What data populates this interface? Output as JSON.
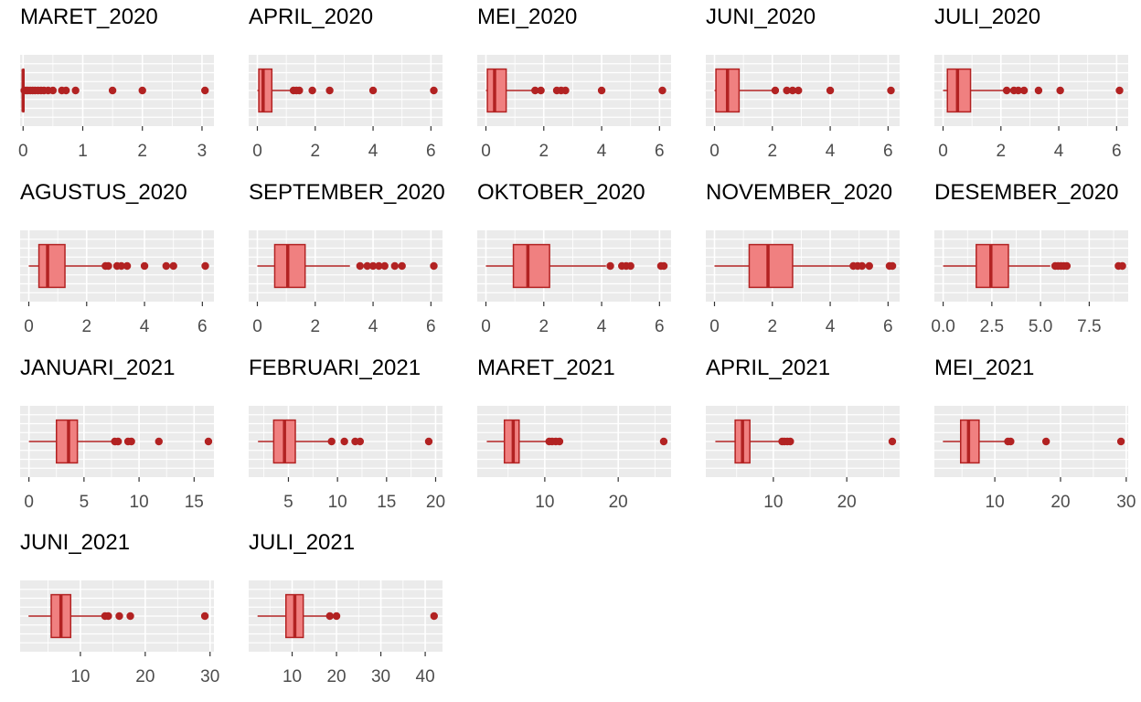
{
  "style": {
    "panel_bg": "#EBEBEB",
    "grid_color": "#FFFFFF",
    "box_fill": "#F08080",
    "box_stroke": "#B22222",
    "outlier_color": "#B22222",
    "title_color": "#000000",
    "tick_label_color": "#4D4D4D"
  },
  "chart_data": [
    {
      "title": "MARET_2020",
      "type": "boxplot",
      "xlim": [
        -0.05,
        3.2
      ],
      "ticks": [
        0,
        1,
        2,
        3
      ],
      "q1": 0,
      "median": 0,
      "q3": 0,
      "whisker_low": 0,
      "whisker_high": 0.01,
      "outliers": [
        0.02,
        0.05,
        0.08,
        0.12,
        0.16,
        0.2,
        0.25,
        0.3,
        0.35,
        0.42,
        0.5,
        0.65,
        0.72,
        0.88,
        1.5,
        2.0,
        3.05
      ]
    },
    {
      "title": "APRIL_2020",
      "type": "boxplot",
      "xlim": [
        -0.3,
        6.4
      ],
      "ticks": [
        0,
        2,
        4,
        6
      ],
      "q1": 0.05,
      "median": 0.2,
      "q3": 0.5,
      "whisker_low": 0,
      "whisker_high": 1.15,
      "outliers": [
        1.25,
        1.35,
        1.45,
        1.9,
        2.5,
        4.0,
        6.1
      ]
    },
    {
      "title": "MEI_2020",
      "type": "boxplot",
      "xlim": [
        -0.3,
        6.4
      ],
      "ticks": [
        0,
        2,
        4,
        6
      ],
      "q1": 0.05,
      "median": 0.3,
      "q3": 0.7,
      "whisker_low": 0,
      "whisker_high": 1.6,
      "outliers": [
        1.7,
        1.9,
        2.45,
        2.6,
        2.75,
        4.0,
        6.1
      ]
    },
    {
      "title": "JUNI_2020",
      "type": "boxplot",
      "xlim": [
        -0.3,
        6.4
      ],
      "ticks": [
        0,
        2,
        4,
        6
      ],
      "q1": 0.05,
      "median": 0.45,
      "q3": 0.85,
      "whisker_low": 0,
      "whisker_high": 2.0,
      "outliers": [
        2.1,
        2.5,
        2.7,
        2.9,
        4.0,
        6.1
      ]
    },
    {
      "title": "JULI_2020",
      "type": "boxplot",
      "xlim": [
        -0.3,
        6.4
      ],
      "ticks": [
        0,
        2,
        4,
        6
      ],
      "q1": 0.15,
      "median": 0.5,
      "q3": 0.95,
      "whisker_low": 0,
      "whisker_high": 2.1,
      "outliers": [
        2.2,
        2.45,
        2.6,
        2.8,
        3.3,
        4.05,
        6.1
      ]
    },
    {
      "title": "AGUSTUS_2020",
      "type": "boxplot",
      "xlim": [
        -0.3,
        6.4
      ],
      "ticks": [
        0,
        2,
        4,
        6
      ],
      "q1": 0.35,
      "median": 0.65,
      "q3": 1.25,
      "whisker_low": 0,
      "whisker_high": 2.6,
      "outliers": [
        2.65,
        2.75,
        3.05,
        3.2,
        3.4,
        4.0,
        4.75,
        5.0,
        6.1
      ]
    },
    {
      "title": "SEPTEMBER_2020",
      "type": "boxplot",
      "xlim": [
        -0.3,
        6.4
      ],
      "ticks": [
        0,
        2,
        4,
        6
      ],
      "q1": 0.6,
      "median": 1.05,
      "q3": 1.65,
      "whisker_low": 0,
      "whisker_high": 3.2,
      "outliers": [
        3.55,
        3.8,
        4.0,
        4.2,
        4.4,
        4.75,
        5.0,
        6.1
      ]
    },
    {
      "title": "OKTOBER_2020",
      "type": "boxplot",
      "xlim": [
        -0.3,
        6.4
      ],
      "ticks": [
        0,
        2,
        4,
        6
      ],
      "q1": 0.95,
      "median": 1.45,
      "q3": 2.2,
      "whisker_low": 0,
      "whisker_high": 4.15,
      "outliers": [
        4.3,
        4.7,
        4.85,
        5.0,
        6.05,
        6.15
      ]
    },
    {
      "title": "NOVEMBER_2020",
      "type": "boxplot",
      "xlim": [
        -0.3,
        6.4
      ],
      "ticks": [
        0,
        2,
        4,
        6
      ],
      "q1": 1.2,
      "median": 1.85,
      "q3": 2.7,
      "whisker_low": 0,
      "whisker_high": 4.75,
      "outliers": [
        4.8,
        4.95,
        5.1,
        5.35,
        6.05,
        6.15
      ]
    },
    {
      "title": "DESEMBER_2020",
      "type": "boxplot",
      "xlim": [
        -0.45,
        9.5
      ],
      "ticks": [
        0,
        2.5,
        5,
        7.5
      ],
      "tick_labels": [
        "0.0",
        "2.5",
        "5.0",
        "7.5"
      ],
      "q1": 1.7,
      "median": 2.45,
      "q3": 3.35,
      "whisker_low": 0,
      "whisker_high": 5.5,
      "outliers": [
        5.75,
        5.9,
        6.05,
        6.2,
        6.35,
        9.0,
        9.2
      ]
    },
    {
      "title": "JANUARI_2021",
      "type": "boxplot",
      "xlim": [
        -0.8,
        16.8
      ],
      "ticks": [
        0,
        5,
        10,
        15
      ],
      "q1": 2.5,
      "median": 3.6,
      "q3": 4.4,
      "whisker_low": 0,
      "whisker_high": 7.6,
      "outliers": [
        7.8,
        8.1,
        9.0,
        9.3,
        11.8,
        16.3
      ]
    },
    {
      "title": "FEBRUARI_2021",
      "type": "boxplot",
      "xlim": [
        0.95,
        20.7
      ],
      "ticks": [
        5,
        10,
        15,
        20
      ],
      "q1": 3.5,
      "median": 4.6,
      "q3": 5.7,
      "whisker_low": 1.9,
      "whisker_high": 9.2,
      "outliers": [
        9.4,
        10.7,
        11.8,
        12.3,
        19.3
      ]
    },
    {
      "title": "MARET_2021",
      "type": "boxplot",
      "xlim": [
        0.8,
        27.2
      ],
      "ticks": [
        10,
        20
      ],
      "q1": 4.5,
      "median": 5.7,
      "q3": 6.5,
      "whisker_low": 2.1,
      "whisker_high": 10.4,
      "outliers": [
        10.6,
        11.0,
        11.5,
        12.0,
        26.2
      ]
    },
    {
      "title": "APRIL_2021",
      "type": "boxplot",
      "xlim": [
        0.8,
        27.2
      ],
      "ticks": [
        10,
        20
      ],
      "q1": 4.8,
      "median": 5.8,
      "q3": 6.8,
      "whisker_low": 2.1,
      "whisker_high": 11.0,
      "outliers": [
        11.2,
        11.5,
        11.9,
        12.3,
        26.2
      ]
    },
    {
      "title": "MEI_2021",
      "type": "boxplot",
      "xlim": [
        0.8,
        30.3
      ],
      "ticks": [
        10,
        20,
        30
      ],
      "q1": 4.8,
      "median": 6.0,
      "q3": 7.6,
      "whisker_low": 2.1,
      "whisker_high": 11.8,
      "outliers": [
        12.0,
        12.4,
        17.8,
        29.2
      ]
    },
    {
      "title": "JUNI_2021",
      "type": "boxplot",
      "xlim": [
        0.7,
        30.6
      ],
      "ticks": [
        10,
        20,
        30
      ],
      "q1": 5.5,
      "median": 7.0,
      "q3": 8.5,
      "whisker_low": 2.0,
      "whisker_high": 13.5,
      "outliers": [
        13.8,
        14.3,
        16.0,
        17.7,
        29.2
      ]
    },
    {
      "title": "JULI_2021",
      "type": "boxplot",
      "xlim": [
        0.2,
        43.9
      ],
      "ticks": [
        10,
        20,
        30,
        40
      ],
      "q1": 8.6,
      "median": 10.6,
      "q3": 12.5,
      "whisker_low": 2.2,
      "whisker_high": 18.1,
      "outliers": [
        18.5,
        20.0,
        42.0
      ]
    }
  ]
}
